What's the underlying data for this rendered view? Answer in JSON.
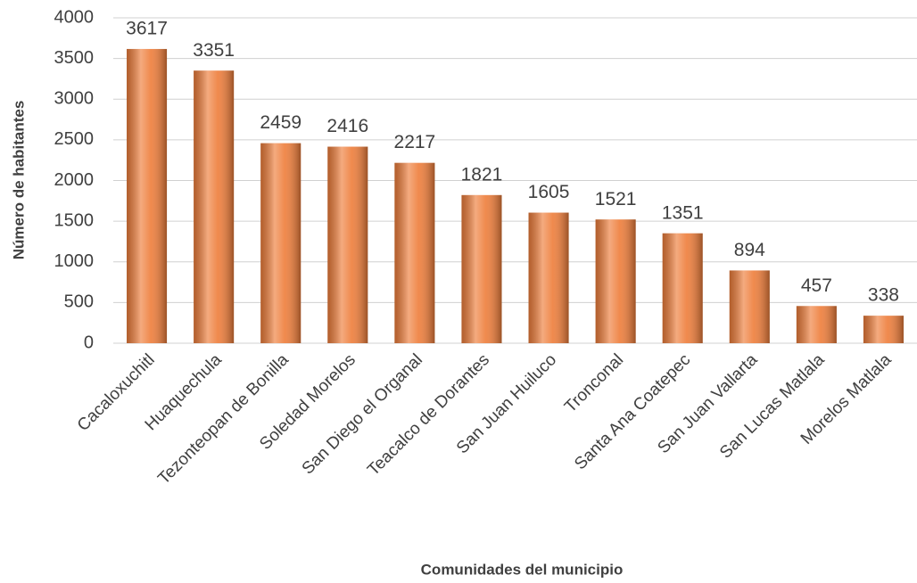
{
  "chart_data": {
    "type": "bar",
    "categories": [
      "Cacaloxuchitl",
      "Huaquechula",
      "Tezonteopan de Bonilla",
      "Soledad Morelos",
      "San Diego el Organal",
      "Teacalco de Dorantes",
      "San Juan Huiluco",
      "Tronconal",
      "Santa Ana Coatepec",
      "San Juan Vallarta",
      "San Lucas Matlala",
      "Morelos Matlala"
    ],
    "values": [
      3617,
      3351,
      2459,
      2416,
      2217,
      1821,
      1605,
      1521,
      1351,
      894,
      457,
      338
    ],
    "color": "#ee7d3a",
    "x_label": "Comunidades del municipio",
    "y_label": "Número de habitantes",
    "ylim": [
      0,
      4000
    ],
    "yticks": [
      0,
      500,
      1000,
      1500,
      2000,
      2500,
      3000,
      3500,
      4000
    ],
    "grid": true
  }
}
